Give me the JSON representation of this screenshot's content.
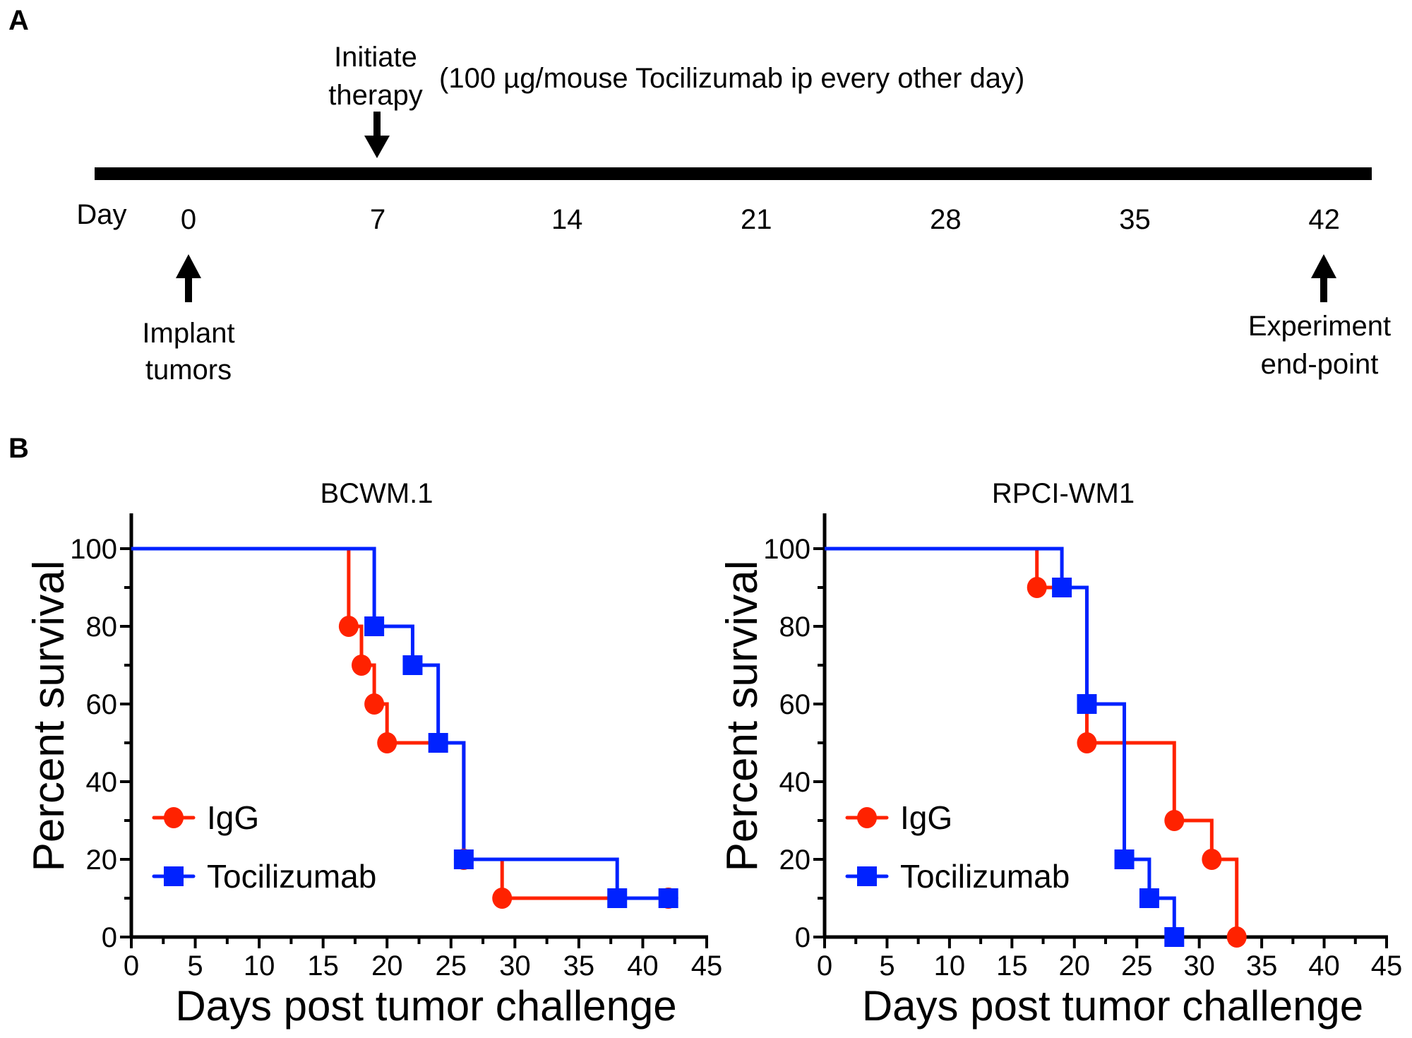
{
  "panel_a": {
    "label": "A",
    "day_label": "Day",
    "days": [
      "0",
      "7",
      "14",
      "21",
      "28",
      "35",
      "42"
    ],
    "therapy_label_line1": "Initiate",
    "therapy_label_line2": "therapy",
    "therapy_note": "(100 µg/mouse Tocilizumab ip every other day)",
    "implant_line1": "Implant",
    "implant_line2": "tumors",
    "endpoint_line1": "Experiment",
    "endpoint_line2": "end-point"
  },
  "panel_b": {
    "label": "B"
  },
  "colors": {
    "IgG": "#ff2200",
    "Tocilizumab": "#0022ff"
  },
  "chart_data": [
    {
      "type": "line",
      "subtype": "kaplan-meier step",
      "title": "BCWM.1",
      "xlabel": "Days post tumor challenge",
      "ylabel": "Percent survival",
      "xlim": [
        0,
        45
      ],
      "ylim": [
        0,
        100
      ],
      "xticks": [
        "0",
        "5",
        "10",
        "15",
        "20",
        "25",
        "30",
        "35",
        "40",
        "45"
      ],
      "yticks": [
        "0",
        "20",
        "40",
        "60",
        "80",
        "100"
      ],
      "legend": "bottom-left",
      "series": [
        {
          "name": "IgG",
          "marker": "circle",
          "x": [
            0,
            17,
            18,
            19,
            20,
            26,
            29,
            42
          ],
          "y": [
            100,
            80,
            70,
            60,
            50,
            20,
            10,
            10
          ]
        },
        {
          "name": "Tocilizumab",
          "marker": "square",
          "x": [
            0,
            19,
            22,
            24,
            26,
            38,
            42
          ],
          "y": [
            100,
            80,
            70,
            50,
            20,
            10,
            10
          ]
        }
      ]
    },
    {
      "type": "line",
      "subtype": "kaplan-meier step",
      "title": "RPCI-WM1",
      "xlabel": "Days post tumor challenge",
      "ylabel": "Percent survival",
      "xlim": [
        0,
        45
      ],
      "ylim": [
        0,
        100
      ],
      "xticks": [
        "0",
        "5",
        "10",
        "15",
        "20",
        "25",
        "30",
        "35",
        "40",
        "45"
      ],
      "yticks": [
        "0",
        "20",
        "40",
        "60",
        "80",
        "100"
      ],
      "legend": "bottom-left",
      "series": [
        {
          "name": "IgG",
          "marker": "circle",
          "x": [
            0,
            17,
            21,
            28,
            31,
            33
          ],
          "y": [
            100,
            90,
            50,
            30,
            20,
            0
          ]
        },
        {
          "name": "Tocilizumab",
          "marker": "square",
          "x": [
            0,
            19,
            21,
            24,
            26,
            28
          ],
          "y": [
            100,
            90,
            60,
            20,
            10,
            0
          ]
        }
      ]
    }
  ]
}
